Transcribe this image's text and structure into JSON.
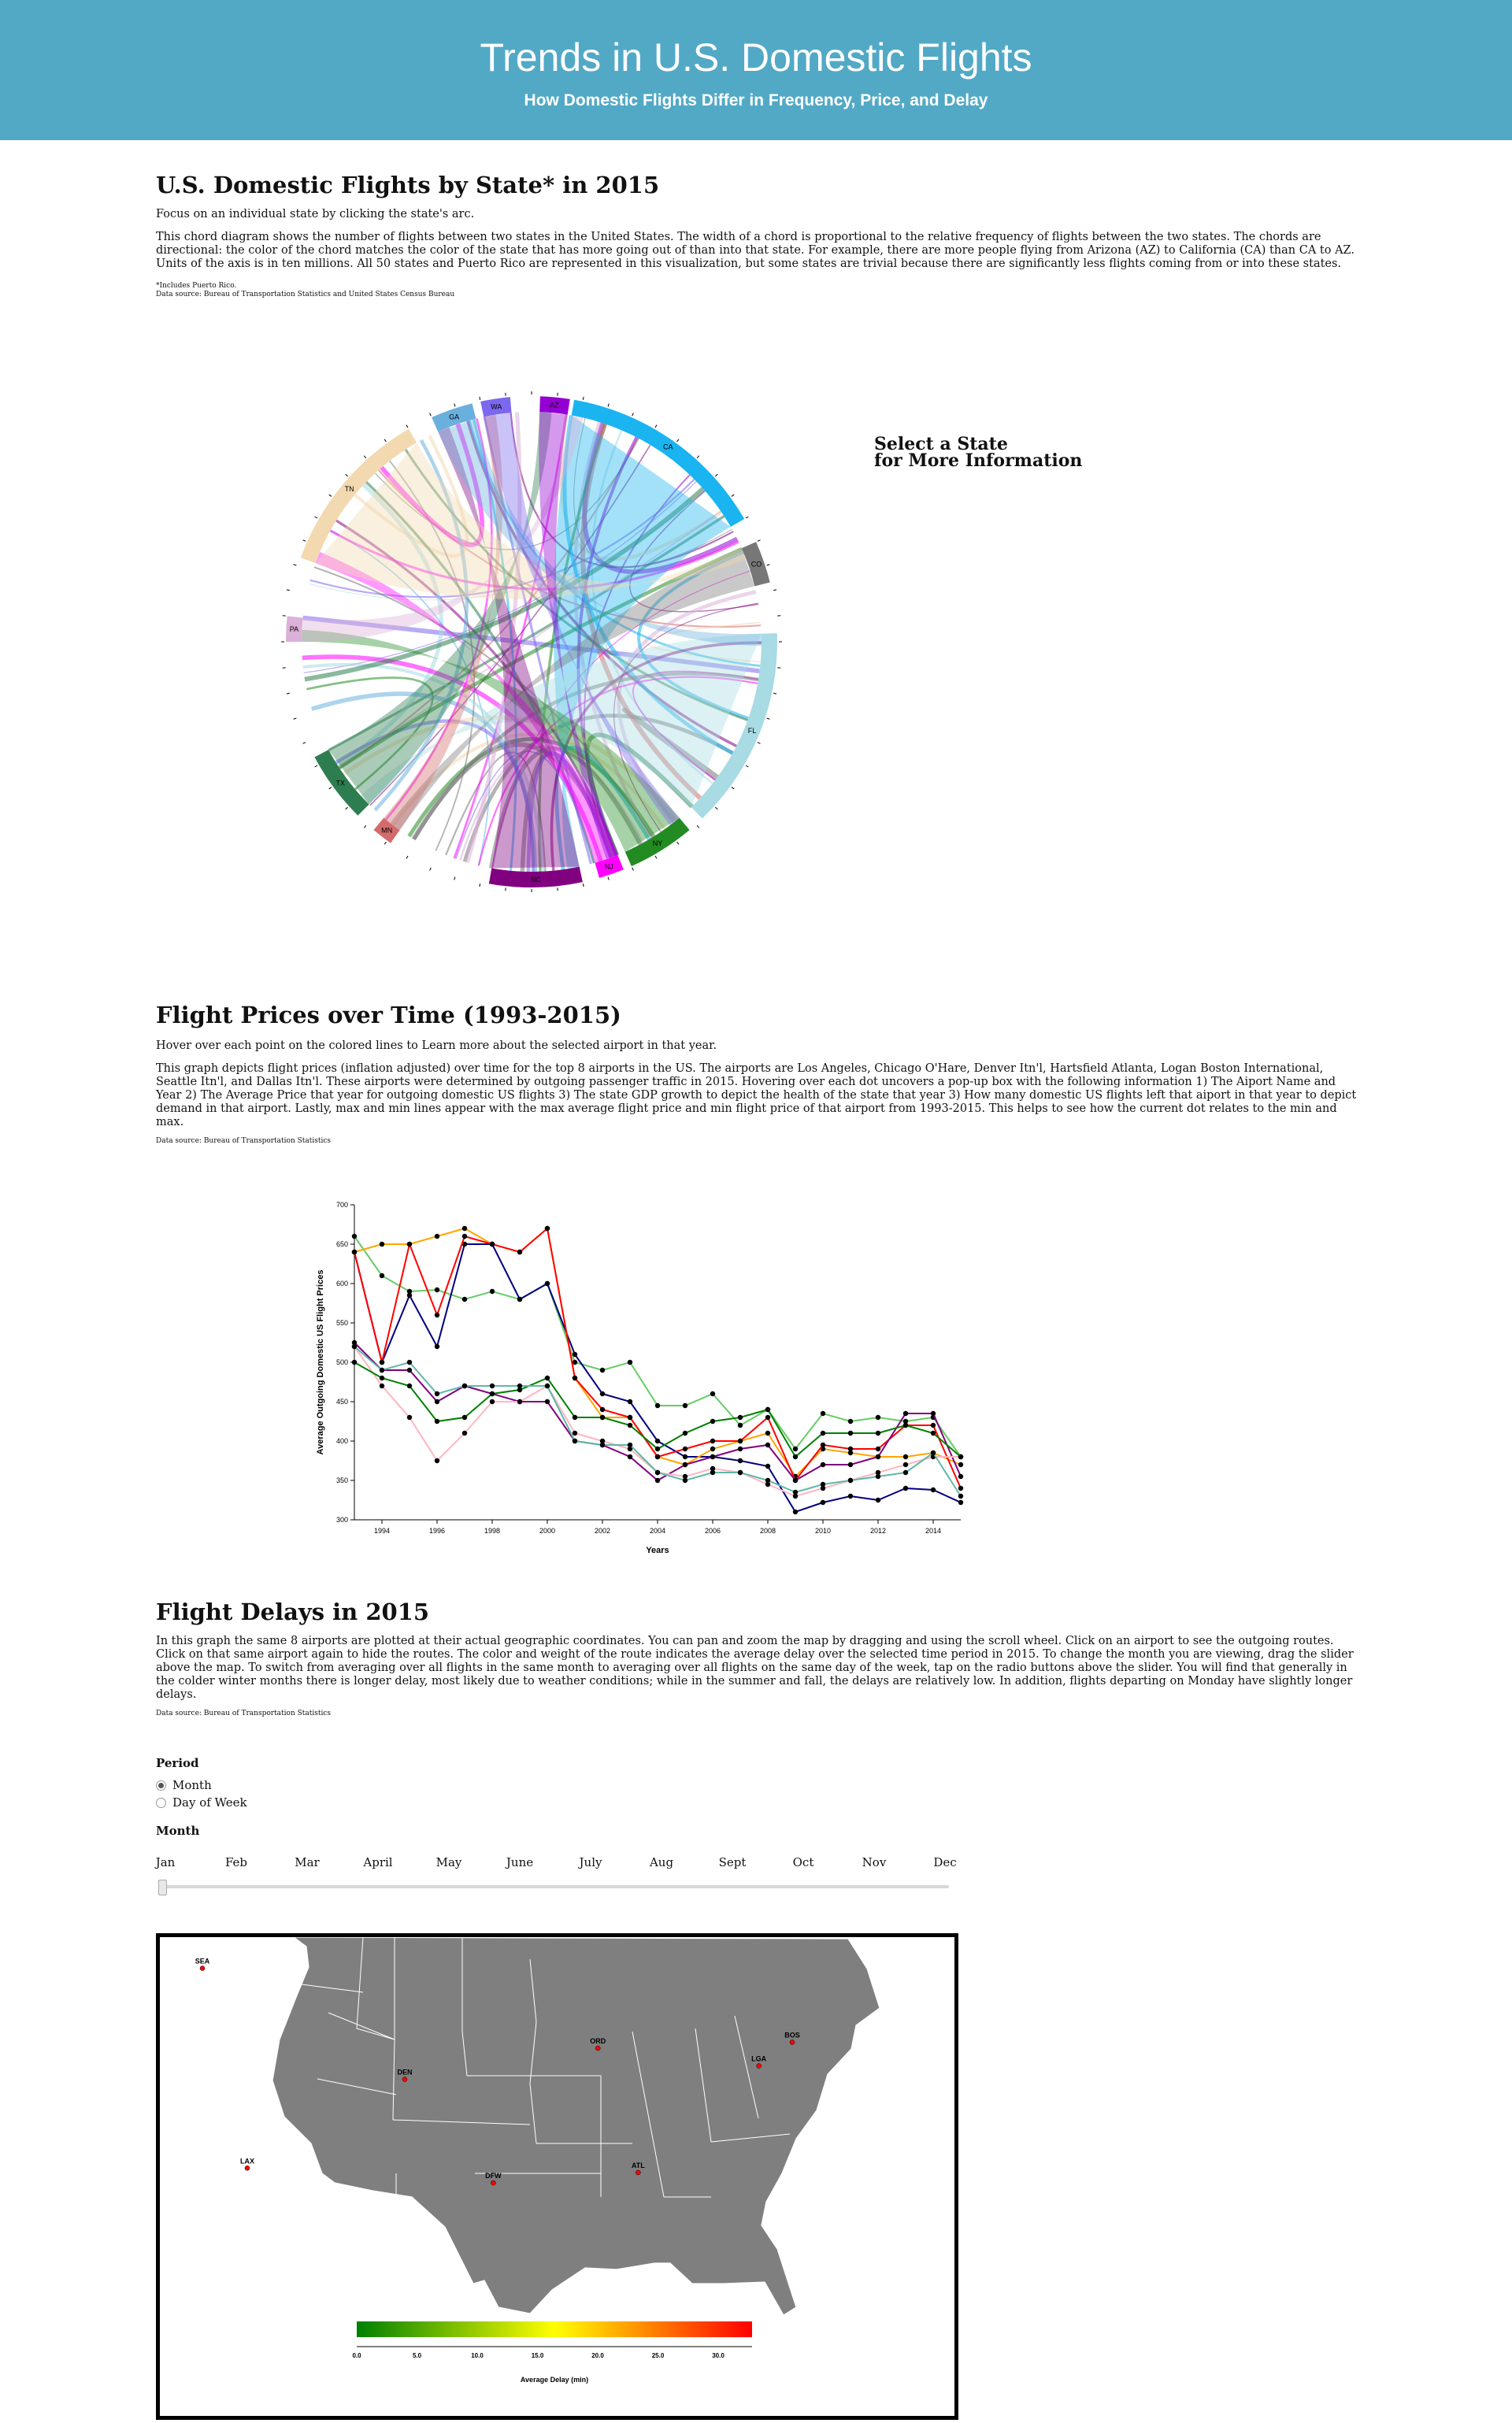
{
  "header": {
    "title": "Trends in U.S. Domestic Flights",
    "subtitle": "How Domestic Flights Differ in Frequency, Price, and Delay"
  },
  "chord_section": {
    "title": "U.S. Domestic Flights by State* in 2015",
    "instruction": "Focus on an individual state by clicking the state's arc.",
    "description": "This chord diagram shows the number of flights between two states in the United States. The width of a chord is proportional to the relative frequency of flights between the two states. The chords are directional: the color of the chord matches the color of the state that has more going out of than into that state. For example, there are more people flying from Arizona (AZ) to California (CA) than CA to AZ. Units of the axis is in ten millions. All 50 states and Puerto Rico are represented in this visualization, but some states are trivial because there are significantly less flights coming from or into these states.",
    "footnote": "*Includes Puerto Rico.",
    "source": "Data source: Bureau of Transportation Statistics and United States Census Bureau",
    "select_line1": "Select a State",
    "select_line2": "for More Information"
  },
  "chord_data": {
    "arcs": [
      {
        "label": "CA",
        "color": "#1ab4f0",
        "start": 10,
        "end": 60
      },
      {
        "label": "CO",
        "color": "#777777",
        "start": 66,
        "end": 76
      },
      {
        "label": "FL",
        "color": "#a8dbe3",
        "start": 88,
        "end": 136
      },
      {
        "label": "NY",
        "color": "#228b22",
        "start": 140,
        "end": 156
      },
      {
        "label": "NJ",
        "color": "#ff00ff",
        "start": 158,
        "end": 164
      },
      {
        "label": "NC",
        "color": "#800080",
        "start": 168,
        "end": 190
      },
      {
        "label": "MN",
        "color": "#d46a6a",
        "start": 215,
        "end": 220
      },
      {
        "label": "TX",
        "color": "#2e7d50",
        "start": 225,
        "end": 242
      },
      {
        "label": "PA",
        "color": "#dcb0d8",
        "start": 270,
        "end": 276
      },
      {
        "label": "TN",
        "color": "#f2d9b0",
        "start": 290,
        "end": 330
      },
      {
        "label": "GA",
        "color": "#6ab0de",
        "start": 336,
        "end": 346
      },
      {
        "label": "WA",
        "color": "#7b68ee",
        "start": 348,
        "end": 355
      },
      {
        "label": "AZ",
        "color": "#9400d3",
        "start": 2,
        "end": 9
      }
    ]
  },
  "price_section": {
    "title": "Flight Prices over Time (1993-2015)",
    "instruction": "Hover over each point on the colored lines to Learn more about the selected airport in that year.",
    "description": "This graph depicts flight prices (inflation adjusted) over time for the top 8 airports in the US. The airports are Los Angeles, Chicago O'Hare, Denver Itn'l, Hartsfield Atlanta, Logan Boston International, Seattle Itn'l, and Dallas Itn'l. These airports were determined by outgoing passenger traffic in 2015. Hovering over each dot uncovers a pop-up box with the following information 1) The Aiport Name and Year 2) The Average Price that year for outgoing domestic US flights 3) The state GDP growth to depict the health of the state that year 3) How many domestic US flights left that aiport in that year to depict demand in that airport. Lastly, max and min lines appear with the max average flight price and min flight price of that airport from 1993-2015. This helps to see how the current dot relates to the min and max.",
    "source": "Data source: Bureau of Transportation Statistics"
  },
  "chart_data": {
    "type": "line",
    "xlabel": "Years",
    "ylabel": "Average Outgoing Domestic US Flight Prices",
    "xlim": [
      1993,
      2015
    ],
    "ylim": [
      300,
      700
    ],
    "xticks": [
      1994,
      1996,
      1998,
      2000,
      2002,
      2004,
      2006,
      2008,
      2010,
      2012,
      2014
    ],
    "yticks": [
      300,
      350,
      400,
      450,
      500,
      550,
      600,
      650,
      700
    ],
    "x": [
      1993,
      1994,
      1995,
      1996,
      1997,
      1998,
      1999,
      2000,
      2001,
      2002,
      2003,
      2004,
      2005,
      2006,
      2007,
      2008,
      2009,
      2010,
      2011,
      2012,
      2013,
      2014,
      2015
    ],
    "series": [
      {
        "color": "#66cc66",
        "values": [
          660,
          610,
          590,
          592,
          580,
          590,
          580,
          600,
          500,
          490,
          500,
          445,
          445,
          460,
          420,
          440,
          390,
          435,
          425,
          430,
          425,
          430,
          380
        ]
      },
      {
        "color": "#000080",
        "values": [
          640,
          500,
          585,
          520,
          650,
          650,
          580,
          600,
          510,
          460,
          450,
          400,
          380,
          380,
          375,
          368,
          310,
          322,
          330,
          325,
          340,
          338,
          322
        ]
      },
      {
        "color": "#ffa500",
        "values": [
          640,
          650,
          650,
          660,
          670,
          650,
          640,
          670,
          480,
          430,
          430,
          380,
          370,
          390,
          400,
          410,
          355,
          390,
          385,
          380,
          380,
          385,
          370
        ]
      },
      {
        "color": "#ff0000",
        "values": [
          640,
          500,
          650,
          560,
          660,
          650,
          640,
          670,
          480,
          440,
          430,
          380,
          390,
          400,
          400,
          430,
          350,
          395,
          390,
          390,
          420,
          420,
          340
        ]
      },
      {
        "color": "#800080",
        "values": [
          525,
          490,
          490,
          450,
          470,
          460,
          450,
          450,
          400,
          395,
          380,
          350,
          370,
          380,
          390,
          395,
          350,
          370,
          370,
          380,
          435,
          435,
          355
        ]
      },
      {
        "color": "#ffb6c1",
        "values": [
          520,
          470,
          430,
          375,
          410,
          450,
          450,
          470,
          410,
          400,
          390,
          360,
          355,
          365,
          360,
          345,
          330,
          340,
          350,
          360,
          370,
          380,
          380
        ]
      },
      {
        "color": "#008000",
        "values": [
          500,
          480,
          470,
          425,
          430,
          460,
          465,
          480,
          430,
          430,
          420,
          390,
          410,
          425,
          430,
          440,
          380,
          410,
          410,
          410,
          420,
          410,
          380
        ]
      },
      {
        "color": "#5fb8a8",
        "values": [
          520,
          490,
          500,
          460,
          470,
          470,
          470,
          470,
          400,
          395,
          395,
          360,
          350,
          360,
          360,
          350,
          335,
          345,
          350,
          355,
          360,
          385,
          330
        ]
      }
    ]
  },
  "delay_section": {
    "title": "Flight Delays in 2015",
    "description": "In this graph the same 8 airports are plotted at their actual geographic coordinates. You can pan and zoom the map by dragging and using the scroll wheel. Click on an airport to see the outgoing routes. Click on that same airport again to hide the routes. The color and weight of the route indicates the average delay over the selected time period in 2015. To change the month you are viewing, drag the slider above the map. To switch from averaging over all flights in the same month to averaging over all flights on the same day of the week, tap on the radio buttons above the slider. You will find that generally in the colder winter months there is longer delay, most likely due to weather conditions; while in the summer and fall, the delays are relatively low. In addition, flights departing on Monday have slightly longer delays.",
    "source": "Data source: Bureau of Transportation Statistics"
  },
  "controls": {
    "period_label": "Period",
    "option_month": "Month",
    "option_dow": "Day of Week",
    "selected": "Month",
    "month_label": "Month",
    "months": [
      "Jan",
      "Feb",
      "Mar",
      "April",
      "May",
      "June",
      "July",
      "Aug",
      "Sept",
      "Oct",
      "Nov",
      "Dec"
    ],
    "slider_value": "Jan"
  },
  "map": {
    "airports": [
      {
        "code": "SEA",
        "lon": -122.3,
        "lat": 47.4
      },
      {
        "code": "LAX",
        "lon": -118.4,
        "lat": 33.9
      },
      {
        "code": "DEN",
        "lon": -104.7,
        "lat": 39.9
      },
      {
        "code": "DFW",
        "lon": -97.0,
        "lat": 32.9
      },
      {
        "code": "ORD",
        "lon": -87.9,
        "lat": 42.0
      },
      {
        "code": "ATL",
        "lon": -84.4,
        "lat": 33.6
      },
      {
        "code": "LGA",
        "lon": -73.9,
        "lat": 40.8
      },
      {
        "code": "BOS",
        "lon": -71.0,
        "lat": 42.4
      }
    ],
    "legend_title": "Average Delay (min)",
    "legend_ticks": [
      "0.0",
      "5.0",
      "10.0",
      "15.0",
      "20.0",
      "25.0",
      "30.0"
    ],
    "legend_min_color": "#008000",
    "legend_mid_color": "#ffff00",
    "legend_max_color": "#ff0000"
  }
}
